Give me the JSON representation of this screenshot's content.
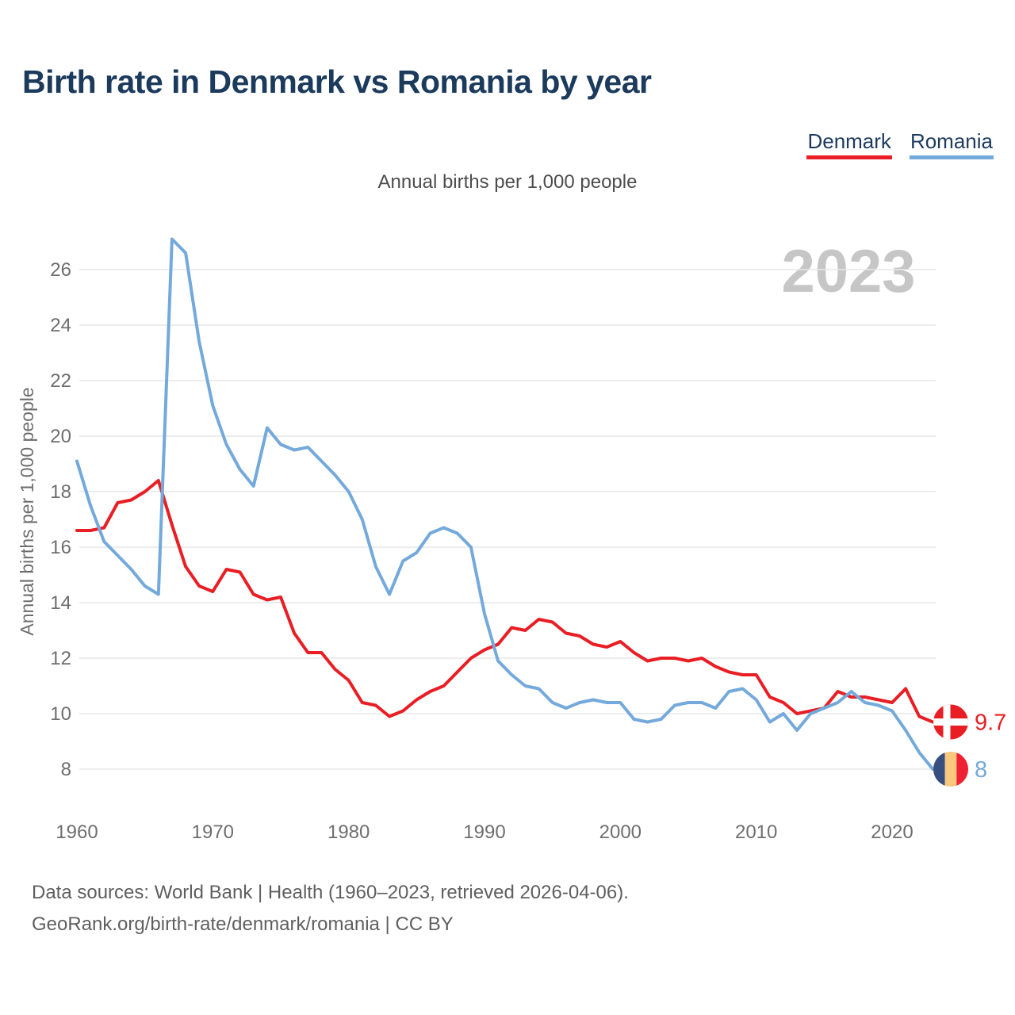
{
  "title": "Birth rate in Denmark vs Romania by year",
  "subtitle": "Annual births per 1,000 people",
  "watermark": "2023",
  "legend": [
    {
      "label": "Denmark",
      "color": "#e91e25"
    },
    {
      "label": "Romania",
      "color": "#74a9db"
    }
  ],
  "footer": {
    "line1": "Data sources: World Bank | Health (1960–2023, retrieved 2026-04-06).",
    "line2": "GeoRank.org/birth-rate/denmark/romania | CC BY"
  },
  "colors": {
    "background": "#ffffff",
    "title": "#1b3a5c",
    "subtitle": "#4d4d4d",
    "tick": "#6e6e6e",
    "grid": "#e7e7e7",
    "watermark": "#c6c6c6",
    "footer": "#5f5f5f"
  },
  "chart_data": {
    "type": "line",
    "title": "Birth rate in Denmark vs Romania by year",
    "xlabel": "",
    "ylabel": "Annual births per 1,000 people",
    "x_range": [
      1960,
      2023
    ],
    "x_step": 1,
    "x_ticks": [
      1960,
      1970,
      1980,
      1990,
      2000,
      2010,
      2020
    ],
    "y_ticks": [
      8,
      10,
      12,
      14,
      16,
      18,
      20,
      22,
      24,
      26
    ],
    "ylim": [
      8,
      27.4
    ],
    "grid": true,
    "legend_position": "top-right",
    "series": [
      {
        "name": "Denmark",
        "color": "#e91e25",
        "end_label": "9.7",
        "flag": {
          "type": "denmark",
          "red": "#e91e25",
          "cross": "#ffffff"
        },
        "values": [
          16.6,
          16.6,
          16.7,
          17.6,
          17.7,
          18.0,
          18.4,
          16.8,
          15.3,
          14.6,
          14.4,
          15.2,
          15.1,
          14.3,
          14.1,
          14.2,
          12.9,
          12.2,
          12.2,
          11.6,
          11.2,
          10.4,
          10.3,
          9.9,
          10.1,
          10.5,
          10.8,
          11.0,
          11.5,
          12.0,
          12.3,
          12.5,
          13.1,
          13.0,
          13.4,
          13.3,
          12.9,
          12.8,
          12.5,
          12.4,
          12.6,
          12.2,
          11.9,
          12.0,
          12.0,
          11.9,
          12.0,
          11.7,
          11.5,
          11.4,
          11.4,
          10.6,
          10.4,
          10.0,
          10.1,
          10.2,
          10.8,
          10.6,
          10.6,
          10.5,
          10.4,
          10.9,
          9.9,
          9.7
        ]
      },
      {
        "name": "Romania",
        "color": "#74a9db",
        "end_label": "8",
        "flag": {
          "type": "romania",
          "blue": "#374f7e",
          "yellow": "#f9c87e",
          "red": "#ee2233"
        },
        "values": [
          19.1,
          17.5,
          16.2,
          15.7,
          15.2,
          14.6,
          14.3,
          27.1,
          26.6,
          23.4,
          21.1,
          19.7,
          18.8,
          18.2,
          20.3,
          19.7,
          19.5,
          19.6,
          19.1,
          18.6,
          18.0,
          17.0,
          15.3,
          14.3,
          15.5,
          15.8,
          16.5,
          16.7,
          16.5,
          16.0,
          13.6,
          11.9,
          11.4,
          11.0,
          10.9,
          10.4,
          10.2,
          10.4,
          10.5,
          10.4,
          10.4,
          9.8,
          9.7,
          9.8,
          10.3,
          10.4,
          10.4,
          10.2,
          10.8,
          10.9,
          10.5,
          9.7,
          10.0,
          9.4,
          10.0,
          10.2,
          10.4,
          10.8,
          10.4,
          10.3,
          10.1,
          9.4,
          8.6,
          8.0
        ]
      }
    ]
  }
}
